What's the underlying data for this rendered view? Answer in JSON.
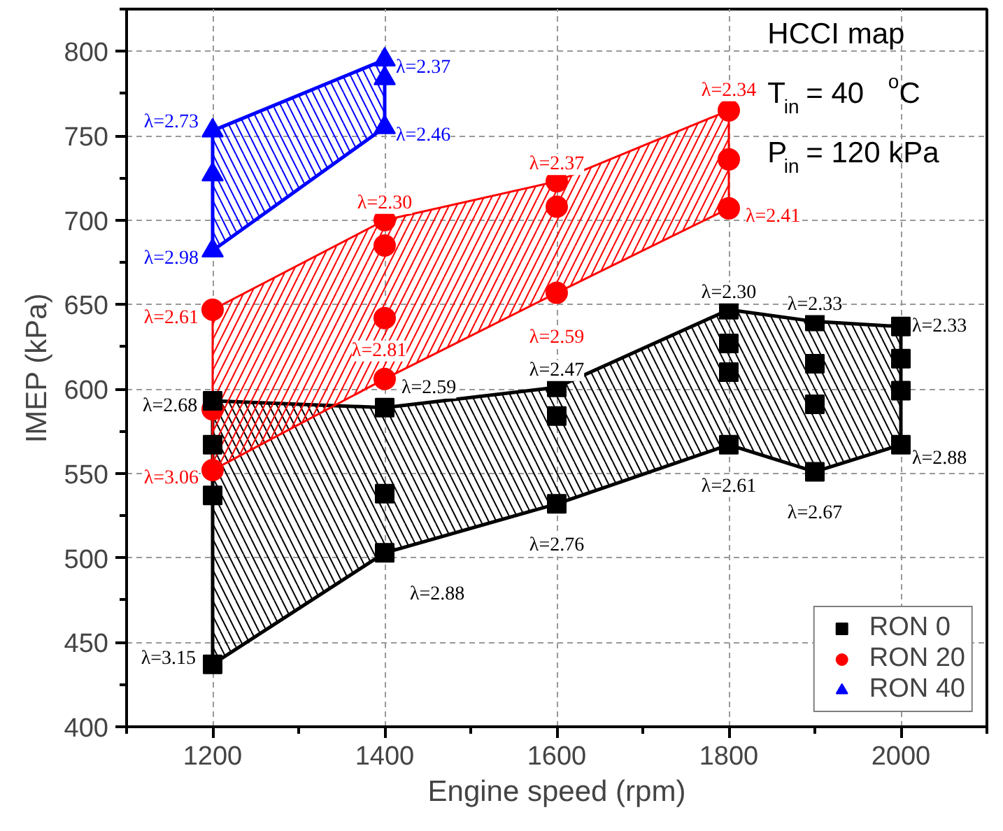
{
  "chart_data": {
    "type": "scatter",
    "xlabel": "Engine speed (rpm)",
    "ylabel": "IMEP (kPa)",
    "xlim": [
      1100,
      2100
    ],
    "xticks": [
      1200,
      1400,
      1600,
      1800,
      2000
    ],
    "ylim": [
      400,
      825
    ],
    "yticks": [
      400,
      450,
      500,
      550,
      600,
      650,
      700,
      750,
      800
    ],
    "grid": true,
    "legend": "bottom right",
    "series": [
      {
        "name": "RON 0",
        "color": "#000000",
        "marker": "square",
        "x": [
          1200,
          1200,
          1200,
          1200,
          1400,
          1400,
          1400,
          1600,
          1600,
          1600,
          1800,
          1800,
          1800,
          1800,
          1900,
          1900,
          1900,
          1900,
          2000,
          2000,
          2000,
          2000
        ],
        "values": [
          593,
          567,
          537,
          437,
          589,
          538,
          503,
          601,
          584,
          532,
          647,
          627,
          610,
          567,
          640,
          615,
          591,
          551,
          637,
          618,
          599,
          567
        ]
      },
      {
        "name": "RON 20",
        "color": "#ff0000",
        "marker": "circle",
        "x": [
          1200,
          1200,
          1200,
          1400,
          1400,
          1400,
          1400,
          1600,
          1600,
          1600,
          1800,
          1800,
          1800
        ],
        "values": [
          647,
          588,
          552,
          700,
          685,
          642,
          606,
          723,
          708,
          657,
          765,
          736,
          707
        ]
      },
      {
        "name": "RON 40",
        "color": "#0000ff",
        "marker": "triangle",
        "x": [
          1200,
          1200,
          1200,
          1400,
          1400,
          1400
        ],
        "values": [
          753,
          727,
          682,
          795,
          784,
          755
        ]
      },
      {
        "type": "area",
        "color": "#000000",
        "x": [
          1200,
          1400,
          1600,
          1800,
          1900,
          2000,
          2000,
          1900,
          1800,
          1600,
          1400,
          1200,
          1200
        ],
        "values": [
          593,
          589,
          601,
          647,
          640,
          637,
          567,
          551,
          567,
          532,
          503,
          437,
          593
        ]
      },
      {
        "type": "area",
        "color": "#ff0000",
        "x": [
          1200,
          1400,
          1600,
          1800,
          1800,
          1600,
          1400,
          1200,
          1200
        ],
        "values": [
          647,
          700,
          723,
          765,
          707,
          657,
          606,
          552,
          647
        ]
      },
      {
        "type": "area",
        "color": "#0000ff",
        "x": [
          1200,
          1400,
          1400,
          1200,
          1200
        ],
        "values": [
          753,
          795,
          755,
          682,
          753
        ]
      }
    ],
    "annotations": [
      "HCCI map",
      "T$_{in}$= 40 $^{o}$C",
      "P$_{in}$ = 120 kPa",
      {
        "text": "λ=2.68",
        "x": 1200,
        "y": 593
      },
      {
        "text": "λ=3.15",
        "x": 1200,
        "y": 437
      },
      {
        "text": "λ=2.59",
        "x": 1400,
        "y": 589
      },
      {
        "text": "λ=2.88",
        "x": 1400,
        "y": 503
      },
      {
        "text": "λ=2.47",
        "x": 1600,
        "y": 601
      },
      {
        "text": "λ=2.76",
        "x": 1600,
        "y": 532
      },
      {
        "text": "λ=2.30",
        "x": 1800,
        "y": 647
      },
      {
        "text": "λ=2.61",
        "x": 1800,
        "y": 567
      },
      {
        "text": "λ=2.33",
        "x": 1900,
        "y": 640
      },
      {
        "text": "λ=2.67",
        "x": 1900,
        "y": 551
      },
      {
        "text": "λ=2.33",
        "x": 2000,
        "y": 637
      },
      {
        "text": "λ=2.88",
        "x": 2000,
        "y": 567
      },
      {
        "text": "λ=2.61",
        "x": 1200,
        "y": 647
      },
      {
        "text": "λ=3.06",
        "x": 1200,
        "y": 552
      },
      {
        "text": "λ=2.30",
        "x": 1400,
        "y": 700
      },
      {
        "text": "λ=2.81",
        "x": 1400,
        "y": 606
      },
      {
        "text": "λ=2.37",
        "x": 1600,
        "y": 723
      },
      {
        "text": "λ=2.59",
        "x": 1600,
        "y": 657
      },
      {
        "text": "λ=2.34",
        "x": 1800,
        "y": 765
      },
      {
        "text": "λ=2.41",
        "x": 1800,
        "y": 707
      },
      {
        "text": "λ=2.73",
        "x": 1200,
        "y": 753
      },
      {
        "text": "λ=2.98",
        "x": 1200,
        "y": 682
      },
      {
        "text": "λ=2.37",
        "x": 1400,
        "y": 795
      },
      {
        "text": "λ=2.46",
        "x": 1400,
        "y": 755
      }
    ]
  }
}
